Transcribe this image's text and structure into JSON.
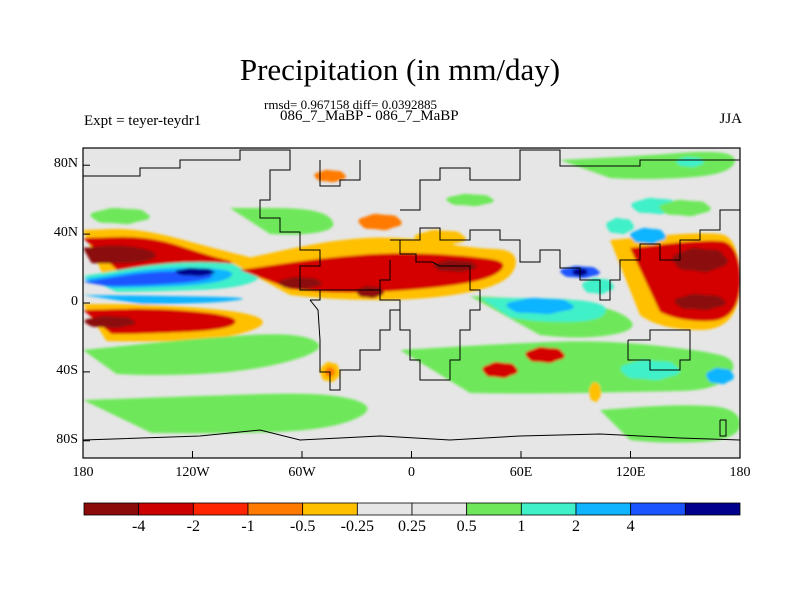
{
  "title": "Precipitation (in mm/day)",
  "stats": "rmsd= 0.967158 diff= 0.0392885",
  "subtitle": "086_7_MaBP - 086_7_MaBP",
  "experiment": "Expt = teyer-teydr1",
  "season": "JJA",
  "map_data": {
    "type": "contour-map",
    "projection": "cylindrical-equidistant",
    "lon_range": [
      -180,
      180
    ],
    "lat_range": [
      -90,
      90
    ],
    "x_ticks": [
      {
        "value": -180,
        "label": "180"
      },
      {
        "value": -120,
        "label": "120W"
      },
      {
        "value": -60,
        "label": "60W"
      },
      {
        "value": 0,
        "label": "0"
      },
      {
        "value": 60,
        "label": "60E"
      },
      {
        "value": 120,
        "label": "120E"
      },
      {
        "value": 180,
        "label": "180"
      }
    ],
    "y_ticks": [
      {
        "value": 80,
        "label": "80N"
      },
      {
        "value": 40,
        "label": "40N"
      },
      {
        "value": 0,
        "label": "0"
      },
      {
        "value": -40,
        "label": "40S"
      },
      {
        "value": -80,
        "label": "80S"
      }
    ]
  },
  "colorbar": {
    "colors": [
      "#8b0a0a",
      "#cc0000",
      "#ff2400",
      "#ff7a00",
      "#ffc000",
      "#e6e6e6",
      "#e6e6e6",
      "#6ee85a",
      "#3ff0c8",
      "#10b4ff",
      "#1a55ff",
      "#00008c"
    ],
    "labels": [
      "-4",
      "-2",
      "-1",
      "-0.5",
      "-0.25",
      "0.25",
      "0.5",
      "1",
      "2",
      "4"
    ]
  },
  "palette": {
    "background": "#e6e6e6",
    "dark_red": "#8b0a0a",
    "red": "#d40000",
    "red_orange": "#ff2400",
    "orange": "#ff7a00",
    "yellow": "#ffc000",
    "green": "#6ee85a",
    "cyan": "#3ff0c8",
    "light_blue": "#10b4ff",
    "blue": "#1a55ff",
    "navy": "#00008c"
  }
}
